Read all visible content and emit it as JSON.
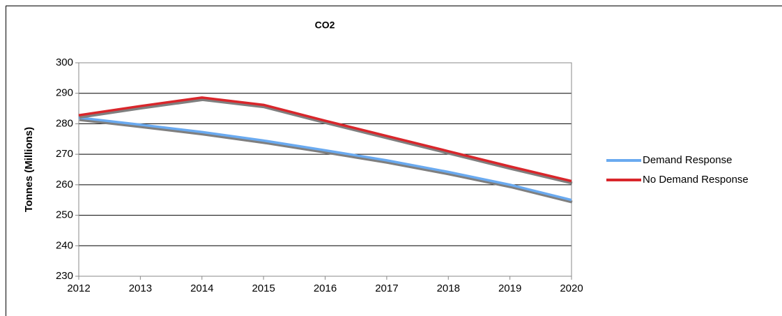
{
  "chart_data": {
    "type": "line",
    "title": "CO2",
    "y_label": "Tonnes (Millions)",
    "x": [
      2012,
      2013,
      2014,
      2015,
      2016,
      2017,
      2018,
      2019,
      2020
    ],
    "xlim": [
      2012,
      2020
    ],
    "xticks": [
      2012,
      2013,
      2014,
      2015,
      2016,
      2017,
      2018,
      2019,
      2020
    ],
    "ylim": [
      230,
      300
    ],
    "yticks": [
      230,
      240,
      250,
      260,
      270,
      280,
      290,
      300
    ],
    "grid": true,
    "legend": "right",
    "series": [
      {
        "name": "Demand Response",
        "color": "#6aaaf0",
        "values": [
          282,
          279.7,
          277.3,
          274.5,
          271.3,
          268,
          264.2,
          260,
          255
        ]
      },
      {
        "name": "No Demand Response",
        "color": "#d9262b",
        "values": [
          282.8,
          285.8,
          288.6,
          286.2,
          281,
          276,
          271,
          266,
          261.2
        ]
      }
    ]
  }
}
